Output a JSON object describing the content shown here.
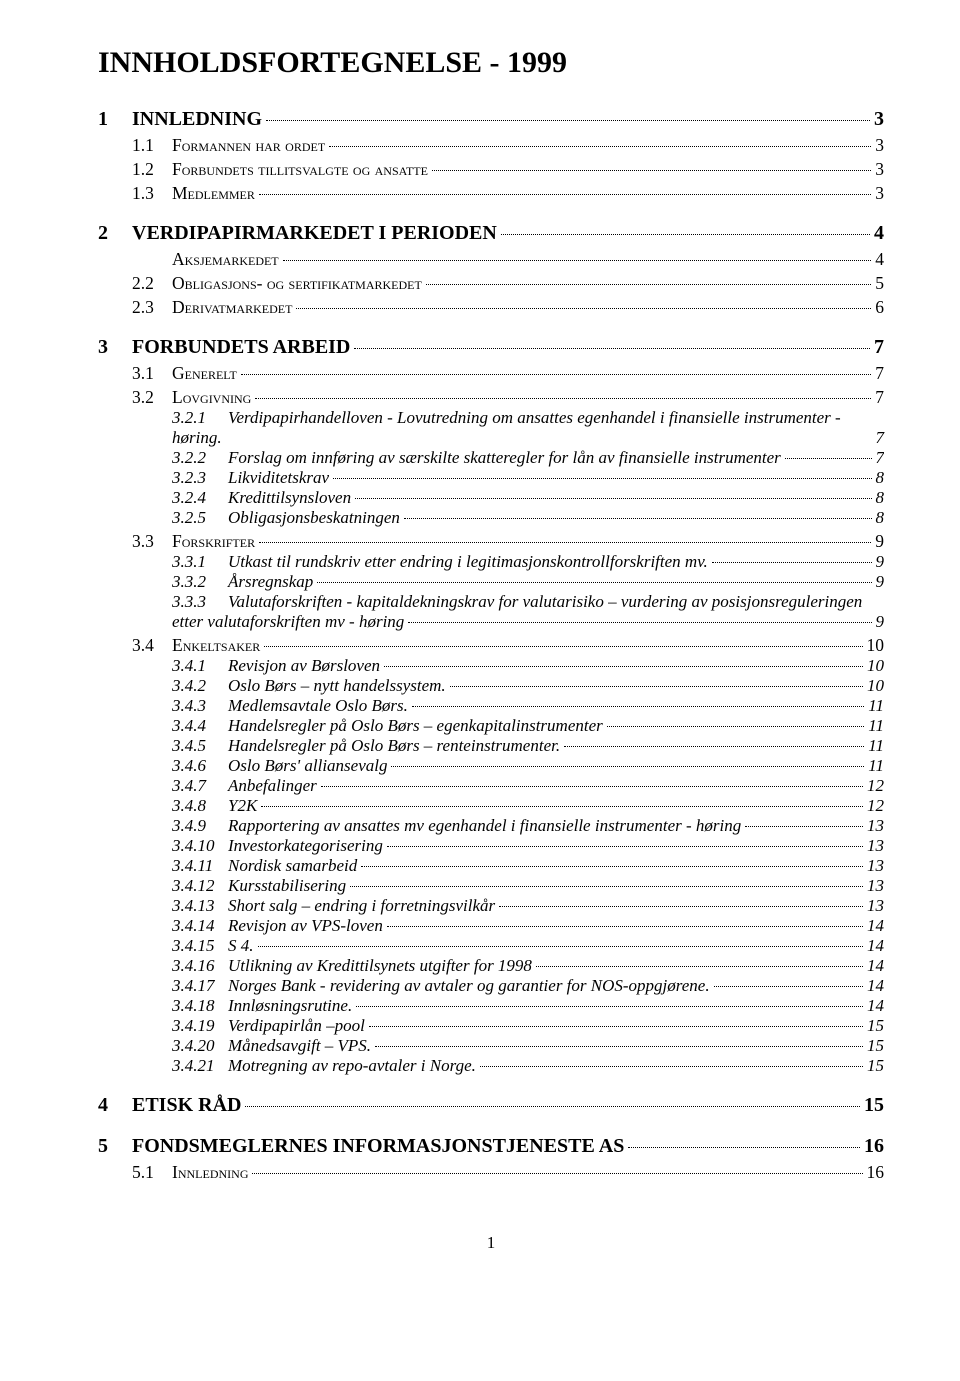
{
  "title": "INNHOLDSFORTEGNELSE - 1999",
  "page_number": "1",
  "toc": [
    {
      "level": 1,
      "num": "1",
      "text": "INNLEDNING",
      "page": "3"
    },
    {
      "level": 2,
      "num": "1.1",
      "text": "Formannen har ordet",
      "page": "3"
    },
    {
      "level": 2,
      "num": "1.2",
      "text": "Forbundets tillitsvalgte og ansatte",
      "page": "3"
    },
    {
      "level": 2,
      "num": "1.3",
      "text": "Medlemmer",
      "page": "3"
    },
    {
      "level": 1,
      "num": "2",
      "text": "VERDIPAPIRMARKEDET I PERIODEN",
      "page": "4"
    },
    {
      "level": 2,
      "num": "",
      "text": "Aksjemarkedet",
      "page": "4"
    },
    {
      "level": 2,
      "num": "2.2",
      "text": "Obligasjons- og sertifikatmarkedet",
      "page": "5"
    },
    {
      "level": 2,
      "num": "2.3",
      "text": "Derivatmarkedet",
      "page": "6"
    },
    {
      "level": 1,
      "num": "3",
      "text": "FORBUNDETS ARBEID",
      "page": "7"
    },
    {
      "level": 2,
      "num": "3.1",
      "text": "Generelt",
      "page": "7"
    },
    {
      "level": 2,
      "num": "3.2",
      "text": "Lovgivning",
      "page": "7"
    },
    {
      "level": 3,
      "num": "3.2.1",
      "wrap": true,
      "line1": "Verdipapirhandelloven - Lovutredning om ansattes egenhandel i finansielle instrumenter -",
      "line2_label": "høring.",
      "line2_right": "7"
    },
    {
      "level": 3,
      "num": "3.2.2",
      "text": "Forslag om innføring av særskilte skatteregler for lån av finansielle instrumenter",
      "page": "7"
    },
    {
      "level": 3,
      "num": "3.2.3",
      "text": "Likviditetskrav",
      "page": "8"
    },
    {
      "level": 3,
      "num": "3.2.4",
      "text": "Kredittilsynsloven",
      "page": "8"
    },
    {
      "level": 3,
      "num": "3.2.5",
      "text": "Obligasjonsbeskatningen",
      "page": "8"
    },
    {
      "level": 2,
      "num": "3.3",
      "text": "Forskrifter",
      "page": "9"
    },
    {
      "level": 3,
      "num": "3.3.1",
      "text": "Utkast til rundskriv etter endring i legitimasjonskontrollforskriften mv.",
      "page": "9"
    },
    {
      "level": 3,
      "num": "3.3.2",
      "text": "Årsregnskap",
      "page": "9"
    },
    {
      "level": 3,
      "num": "3.3.3",
      "wrap": true,
      "line1": "Valutaforskriften - kapitaldekningskrav for valutarisiko – vurdering av posisjonsreguleringen",
      "line2_label": "etter valutaforskriften mv - høring",
      "page": "9"
    },
    {
      "level": 2,
      "num": "3.4",
      "text": "Enkeltsaker",
      "page": "10"
    },
    {
      "level": 3,
      "num": "3.4.1",
      "text": "Revisjon av Børsloven",
      "page": "10"
    },
    {
      "level": 3,
      "num": "3.4.2",
      "text": "Oslo Børs – nytt handelssystem.",
      "page": "10"
    },
    {
      "level": 3,
      "num": "3.4.3",
      "text": "Medlemsavtale Oslo Børs.",
      "page": "11"
    },
    {
      "level": 3,
      "num": "3.4.4",
      "text": "Handelsregler på Oslo Børs – egenkapitalinstrumenter",
      "page": "11"
    },
    {
      "level": 3,
      "num": "3.4.5",
      "text": "Handelsregler på Oslo Børs – renteinstrumenter.",
      "page": "11"
    },
    {
      "level": 3,
      "num": "3.4.6",
      "text": "Oslo Børs' alliansevalg",
      "page": "11"
    },
    {
      "level": 3,
      "num": "3.4.7",
      "text": "Anbefalinger",
      "page": "12"
    },
    {
      "level": 3,
      "num": "3.4.8",
      "text": "Y2K",
      "page": "12"
    },
    {
      "level": 3,
      "num": "3.4.9",
      "text": "Rapportering av ansattes mv egenhandel i finansielle instrumenter - høring",
      "page": "13"
    },
    {
      "level": 3,
      "num": "3.4.10",
      "text": "Investorkategorisering",
      "page": "13"
    },
    {
      "level": 3,
      "num": "3.4.11",
      "text": "Nordisk samarbeid",
      "page": "13"
    },
    {
      "level": 3,
      "num": "3.4.12",
      "text": "Kursstabilisering",
      "page": "13"
    },
    {
      "level": 3,
      "num": "3.4.13",
      "text": "Short salg – endring i forretningsvilkår",
      "page": "13"
    },
    {
      "level": 3,
      "num": "3.4.14",
      "text": "Revisjon av VPS-loven",
      "page": "14"
    },
    {
      "level": 3,
      "num": "3.4.15",
      "text": "S 4.",
      "page": "14"
    },
    {
      "level": 3,
      "num": "3.4.16",
      "text": "Utlikning av Kredittilsynets utgifter for 1998",
      "page": "14"
    },
    {
      "level": 3,
      "num": "3.4.17",
      "text": "Norges Bank - revidering av avtaler og garantier for NOS-oppgjørene.",
      "page": "14"
    },
    {
      "level": 3,
      "num": "3.4.18",
      "text": "Innløsningsrutine.",
      "page": "14"
    },
    {
      "level": 3,
      "num": "3.4.19",
      "text": "Verdipapirlån –pool",
      "page": "15"
    },
    {
      "level": 3,
      "num": "3.4.20",
      "text": "Månedsavgift – VPS.",
      "page": "15"
    },
    {
      "level": 3,
      "num": "3.4.21",
      "text": "Motregning av repo-avtaler i Norge.",
      "page": "15"
    },
    {
      "level": 1,
      "num": "4",
      "text": "ETISK RÅD",
      "page": "15"
    },
    {
      "level": 1,
      "num": "5",
      "text": "FONDSMEGLERNES INFORMASJONSTJENESTE AS",
      "page": "16"
    },
    {
      "level": 2,
      "num": "5.1",
      "text": "Innledning",
      "page": "16"
    }
  ]
}
